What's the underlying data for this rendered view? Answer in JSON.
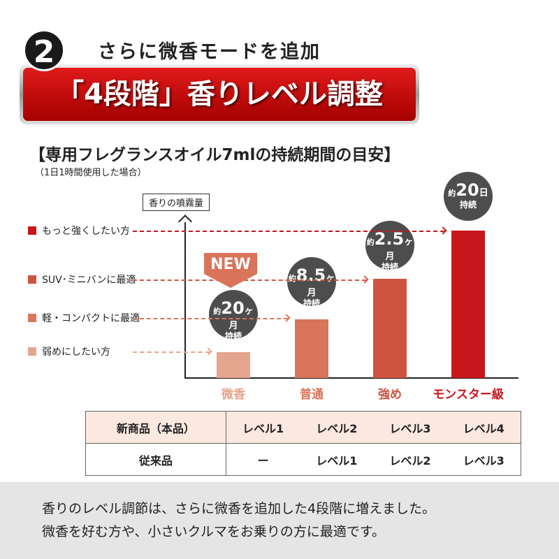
{
  "header": {
    "number": "2",
    "subtitle": "さらに微香モードを追加",
    "banner": "「4段階」香りレベル調整"
  },
  "chart_data": {
    "type": "bar",
    "title": "【専用フレグランスオイル7mlの持続期間の目安】",
    "subtitle": "（1日1時間使用した場合）",
    "ylabel": "香りの噴霧量",
    "categories": [
      "微香",
      "普通",
      "強め",
      "モンスター級"
    ],
    "mist_level": [
      1,
      2,
      3,
      4
    ],
    "durations": [
      {
        "prefix": "約",
        "value": "20",
        "unit": "ヶ月",
        "suffix": "持続"
      },
      {
        "prefix": "約",
        "value": "8.5",
        "unit": "ヶ月",
        "suffix": "持続"
      },
      {
        "prefix": "約",
        "value": "2.5",
        "unit": "ヶ月",
        "suffix": "持続"
      },
      {
        "prefix": "約",
        "value": "20",
        "unit": "日",
        "suffix": "持続"
      }
    ],
    "level_labels": [
      "弱めにしたい方",
      "軽・コンパクトに最適",
      "SUV･ミニバンに最適",
      "もっと強くしたい方"
    ],
    "colors": [
      "#e5a48d",
      "#d9755a",
      "#cf5440",
      "#c8161d"
    ],
    "badge": "NEW"
  },
  "table": {
    "rows": [
      [
        "新商品（本品）",
        "レベル1",
        "レベル2",
        "レベル3",
        "レベル4"
      ],
      [
        "従来品",
        "ー",
        "レベル1",
        "レベル2",
        "レベル3"
      ]
    ]
  },
  "footer": {
    "line1": "香りのレベル調節は、さらに微香を追加した4段階に増えました。",
    "line2": "微香を好む方や、小さいクルマをお乗りの方に最適です。"
  }
}
